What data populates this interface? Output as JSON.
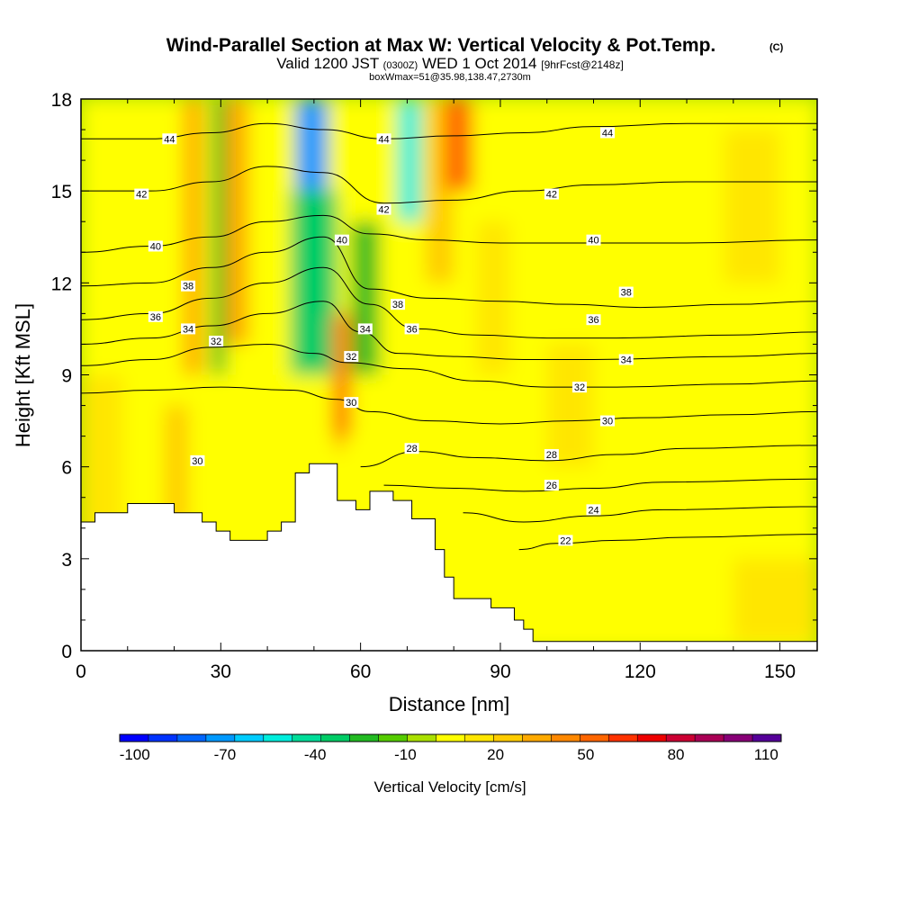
{
  "chart_data": {
    "type": "heatmap",
    "title": "Wind-Parallel Section at Max W: Vertical Velocity & Pot.Temp.",
    "title_mark": "(C)",
    "subtitle": {
      "pre": "Valid 1200 JST",
      "utc": "(0300Z)",
      "date": "WED 1 Oct 2014",
      "fcst": "[9hrFcst@2148z]"
    },
    "info": "boxWmax=51@35.98,138.47,2730m",
    "xlabel": "Distance [nm]",
    "ylabel": "Height [Kft MSL]",
    "xlim": [
      0,
      158
    ],
    "ylim": [
      0,
      18
    ],
    "x_ticks": [
      0,
      30,
      60,
      90,
      120,
      150
    ],
    "y_ticks": [
      0,
      3,
      6,
      9,
      12,
      15,
      18
    ],
    "colorbar": {
      "label": "Vertical Velocity [cm/s]",
      "tick_labels": [
        "-100",
        "-70",
        "-40",
        "-10",
        "20",
        "50",
        "80",
        "110"
      ],
      "colors": [
        "#0000ff",
        "#0033ff",
        "#0066ff",
        "#0099ff",
        "#00ccff",
        "#00eedd",
        "#00dd99",
        "#00cc66",
        "#22bb22",
        "#55cc00",
        "#aae000",
        "#ffff00",
        "#ffe600",
        "#ffcc00",
        "#ffaa00",
        "#ff8800",
        "#ff6600",
        "#ff3300",
        "#ee0000",
        "#cc0033",
        "#aa0055",
        "#880077",
        "#550099"
      ]
    },
    "terrain_kft": [
      [
        0,
        4.2
      ],
      [
        3,
        4.2
      ],
      [
        3,
        4.5
      ],
      [
        10,
        4.5
      ],
      [
        10,
        4.8
      ],
      [
        20,
        4.8
      ],
      [
        20,
        4.5
      ],
      [
        26,
        4.5
      ],
      [
        26,
        4.2
      ],
      [
        29,
        4.2
      ],
      [
        29,
        3.9
      ],
      [
        32,
        3.9
      ],
      [
        32,
        3.6
      ],
      [
        40,
        3.6
      ],
      [
        40,
        3.9
      ],
      [
        43,
        3.9
      ],
      [
        43,
        4.2
      ],
      [
        46,
        4.2
      ],
      [
        46,
        5.8
      ],
      [
        49,
        5.8
      ],
      [
        49,
        6.1
      ],
      [
        55,
        6.1
      ],
      [
        55,
        4.9
      ],
      [
        59,
        4.9
      ],
      [
        59,
        4.6
      ],
      [
        62,
        4.6
      ],
      [
        62,
        5.2
      ],
      [
        67,
        5.2
      ],
      [
        67,
        4.9
      ],
      [
        71,
        4.9
      ],
      [
        71,
        4.3
      ],
      [
        76,
        4.3
      ],
      [
        76,
        3.3
      ],
      [
        78,
        3.3
      ],
      [
        78,
        2.4
      ],
      [
        80,
        2.4
      ],
      [
        80,
        1.7
      ],
      [
        88,
        1.7
      ],
      [
        88,
        1.4
      ],
      [
        93,
        1.4
      ],
      [
        93,
        1.0
      ],
      [
        95,
        1.0
      ],
      [
        95,
        0.7
      ],
      [
        97,
        0.7
      ],
      [
        97,
        0.3
      ],
      [
        158,
        0.3
      ]
    ],
    "vertical_velocity_bands": [
      {
        "x": [
          0,
          158
        ],
        "y": [
          0,
          18
        ],
        "w": -5
      },
      {
        "x": [
          0,
          9
        ],
        "y": [
          0,
          9
        ],
        "w": 5
      },
      {
        "x": [
          18,
          23
        ],
        "y": [
          4,
          8
        ],
        "w": 20
      },
      {
        "x": [
          22,
          26
        ],
        "y": [
          9,
          18
        ],
        "w": 25
      },
      {
        "x": [
          28,
          31
        ],
        "y": [
          9,
          18
        ],
        "w": -30
      },
      {
        "x": [
          31,
          36
        ],
        "y": [
          10,
          18
        ],
        "w": 30
      },
      {
        "x": [
          46,
          53
        ],
        "y": [
          13,
          18
        ],
        "w": -80
      },
      {
        "x": [
          45,
          55
        ],
        "y": [
          9,
          15
        ],
        "w": -40
      },
      {
        "x": [
          54,
          58
        ],
        "y": [
          7,
          11
        ],
        "w": 40
      },
      {
        "x": [
          55,
          56
        ],
        "y": [
          6.5,
          9
        ],
        "w": 60
      },
      {
        "x": [
          58,
          64
        ],
        "y": [
          9,
          14
        ],
        "w": -30
      },
      {
        "x": [
          68,
          73
        ],
        "y": [
          14,
          18
        ],
        "w": -60
      },
      {
        "x": [
          74,
          80
        ],
        "y": [
          12,
          18
        ],
        "w": 20
      },
      {
        "x": [
          78,
          84
        ],
        "y": [
          15,
          18
        ],
        "w": 50
      },
      {
        "x": [
          85,
          92
        ],
        "y": [
          9,
          14
        ],
        "w": 10
      },
      {
        "x": [
          100,
          110
        ],
        "y": [
          6,
          10
        ],
        "w": 10
      },
      {
        "x": [
          138,
          150
        ],
        "y": [
          12,
          17
        ],
        "w": 10
      },
      {
        "x": [
          140,
          158
        ],
        "y": [
          0.3,
          3
        ],
        "w": 5
      }
    ],
    "pot_temp_contours": [
      {
        "theta": 22,
        "label": "22",
        "pts": [
          [
            94,
            3.3
          ],
          [
            102,
            3.5
          ],
          [
            115,
            3.6
          ],
          [
            130,
            3.7
          ],
          [
            158,
            3.8
          ]
        ]
      },
      {
        "theta": 24,
        "label": "24",
        "pts": [
          [
            82,
            4.5
          ],
          [
            95,
            4.2
          ],
          [
            110,
            4.4
          ],
          [
            125,
            4.6
          ],
          [
            158,
            4.7
          ]
        ]
      },
      {
        "theta": 26,
        "label": "26",
        "pts": [
          [
            65,
            5.4
          ],
          [
            80,
            5.3
          ],
          [
            95,
            5.2
          ],
          [
            110,
            5.3
          ],
          [
            125,
            5.5
          ],
          [
            158,
            5.6
          ]
        ]
      },
      {
        "theta": 28,
        "label": "28",
        "pts": [
          [
            60,
            6.0
          ],
          [
            72,
            6.5
          ],
          [
            85,
            6.3
          ],
          [
            100,
            6.2
          ],
          [
            115,
            6.4
          ],
          [
            130,
            6.6
          ],
          [
            158,
            6.7
          ]
        ]
      },
      {
        "theta": 30,
        "label": "30",
        "pts": [
          [
            0,
            8.4
          ],
          [
            15,
            8.5
          ],
          [
            30,
            8.6
          ],
          [
            45,
            8.5
          ],
          [
            55,
            8.2
          ],
          [
            62,
            7.8
          ],
          [
            75,
            7.5
          ],
          [
            90,
            7.4
          ],
          [
            105,
            7.5
          ],
          [
            120,
            7.6
          ],
          [
            140,
            7.7
          ],
          [
            158,
            7.8
          ]
        ]
      },
      {
        "theta": 32,
        "label": "32",
        "pts": [
          [
            0,
            9.3
          ],
          [
            15,
            9.5
          ],
          [
            28,
            9.9
          ],
          [
            40,
            10.0
          ],
          [
            50,
            9.7
          ],
          [
            57,
            9.4
          ],
          [
            70,
            9.2
          ],
          [
            85,
            8.8
          ],
          [
            100,
            8.6
          ],
          [
            115,
            8.6
          ],
          [
            140,
            8.7
          ],
          [
            158,
            8.8
          ]
        ]
      },
      {
        "theta": 34,
        "label": "34",
        "pts": [
          [
            0,
            10.0
          ],
          [
            15,
            10.2
          ],
          [
            28,
            10.6
          ],
          [
            40,
            11.0
          ],
          [
            52,
            11.4
          ],
          [
            60,
            10.4
          ],
          [
            68,
            9.7
          ],
          [
            80,
            9.6
          ],
          [
            95,
            9.5
          ],
          [
            110,
            9.5
          ],
          [
            140,
            9.6
          ],
          [
            158,
            9.7
          ]
        ]
      },
      {
        "theta": 36,
        "label": "36",
        "pts": [
          [
            0,
            10.8
          ],
          [
            15,
            11.0
          ],
          [
            28,
            11.5
          ],
          [
            40,
            12.0
          ],
          [
            52,
            12.5
          ],
          [
            62,
            11.3
          ],
          [
            72,
            10.5
          ],
          [
            85,
            10.3
          ],
          [
            100,
            10.2
          ],
          [
            115,
            10.2
          ],
          [
            140,
            10.3
          ],
          [
            158,
            10.4
          ]
        ]
      },
      {
        "theta": 38,
        "label": "38",
        "pts": [
          [
            0,
            11.9
          ],
          [
            15,
            12.0
          ],
          [
            28,
            12.5
          ],
          [
            40,
            13.0
          ],
          [
            52,
            13.5
          ],
          [
            62,
            11.8
          ],
          [
            75,
            11.5
          ],
          [
            90,
            11.4
          ],
          [
            105,
            11.3
          ],
          [
            120,
            11.2
          ],
          [
            140,
            11.3
          ],
          [
            158,
            11.4
          ]
        ]
      },
      {
        "theta": 40,
        "label": "40",
        "pts": [
          [
            0,
            13.0
          ],
          [
            15,
            13.2
          ],
          [
            28,
            13.5
          ],
          [
            40,
            14.0
          ],
          [
            52,
            14.2
          ],
          [
            62,
            13.6
          ],
          [
            75,
            13.4
          ],
          [
            90,
            13.3
          ],
          [
            110,
            13.3
          ],
          [
            130,
            13.3
          ],
          [
            158,
            13.4
          ]
        ]
      },
      {
        "theta": 42,
        "label": "42",
        "pts": [
          [
            0,
            15.0
          ],
          [
            15,
            15.0
          ],
          [
            28,
            15.3
          ],
          [
            40,
            15.8
          ],
          [
            52,
            15.6
          ],
          [
            65,
            14.6
          ],
          [
            80,
            14.7
          ],
          [
            95,
            15.0
          ],
          [
            110,
            15.2
          ],
          [
            130,
            15.3
          ],
          [
            158,
            15.3
          ]
        ]
      },
      {
        "theta": 44,
        "label": "44",
        "pts": [
          [
            0,
            16.7
          ],
          [
            15,
            16.7
          ],
          [
            28,
            16.9
          ],
          [
            40,
            17.2
          ],
          [
            52,
            17.0
          ],
          [
            65,
            16.7
          ],
          [
            80,
            16.8
          ],
          [
            95,
            16.9
          ],
          [
            110,
            17.1
          ],
          [
            130,
            17.2
          ],
          [
            158,
            17.2
          ]
        ]
      }
    ],
    "contour_labels": [
      {
        "text": "44",
        "x": 19,
        "y": 16.7
      },
      {
        "text": "44",
        "x": 65,
        "y": 16.7
      },
      {
        "text": "44",
        "x": 113,
        "y": 16.9
      },
      {
        "text": "42",
        "x": 13,
        "y": 14.9
      },
      {
        "text": "42",
        "x": 65,
        "y": 14.4
      },
      {
        "text": "42",
        "x": 101,
        "y": 14.9
      },
      {
        "text": "40",
        "x": 16,
        "y": 13.2
      },
      {
        "text": "40",
        "x": 56,
        "y": 13.4
      },
      {
        "text": "40",
        "x": 110,
        "y": 13.4
      },
      {
        "text": "38",
        "x": 23,
        "y": 11.9
      },
      {
        "text": "38",
        "x": 68,
        "y": 11.3
      },
      {
        "text": "38",
        "x": 117,
        "y": 11.7
      },
      {
        "text": "36",
        "x": 16,
        "y": 10.9
      },
      {
        "text": "36",
        "x": 71,
        "y": 10.5
      },
      {
        "text": "36",
        "x": 110,
        "y": 10.8
      },
      {
        "text": "34",
        "x": 23,
        "y": 10.5
      },
      {
        "text": "34",
        "x": 61,
        "y": 10.5
      },
      {
        "text": "34",
        "x": 117,
        "y": 9.5
      },
      {
        "text": "32",
        "x": 29,
        "y": 10.1
      },
      {
        "text": "32",
        "x": 58,
        "y": 9.6
      },
      {
        "text": "32",
        "x": 107,
        "y": 8.6
      },
      {
        "text": "30",
        "x": 58,
        "y": 8.1
      },
      {
        "text": "30",
        "x": 113,
        "y": 7.5
      },
      {
        "text": "30",
        "x": 25,
        "y": 6.2
      },
      {
        "text": "28",
        "x": 71,
        "y": 6.6
      },
      {
        "text": "28",
        "x": 101,
        "y": 6.4
      },
      {
        "text": "26",
        "x": 101,
        "y": 5.4
      },
      {
        "text": "24",
        "x": 110,
        "y": 4.6
      },
      {
        "text": "22",
        "x": 104,
        "y": 3.6
      }
    ]
  }
}
